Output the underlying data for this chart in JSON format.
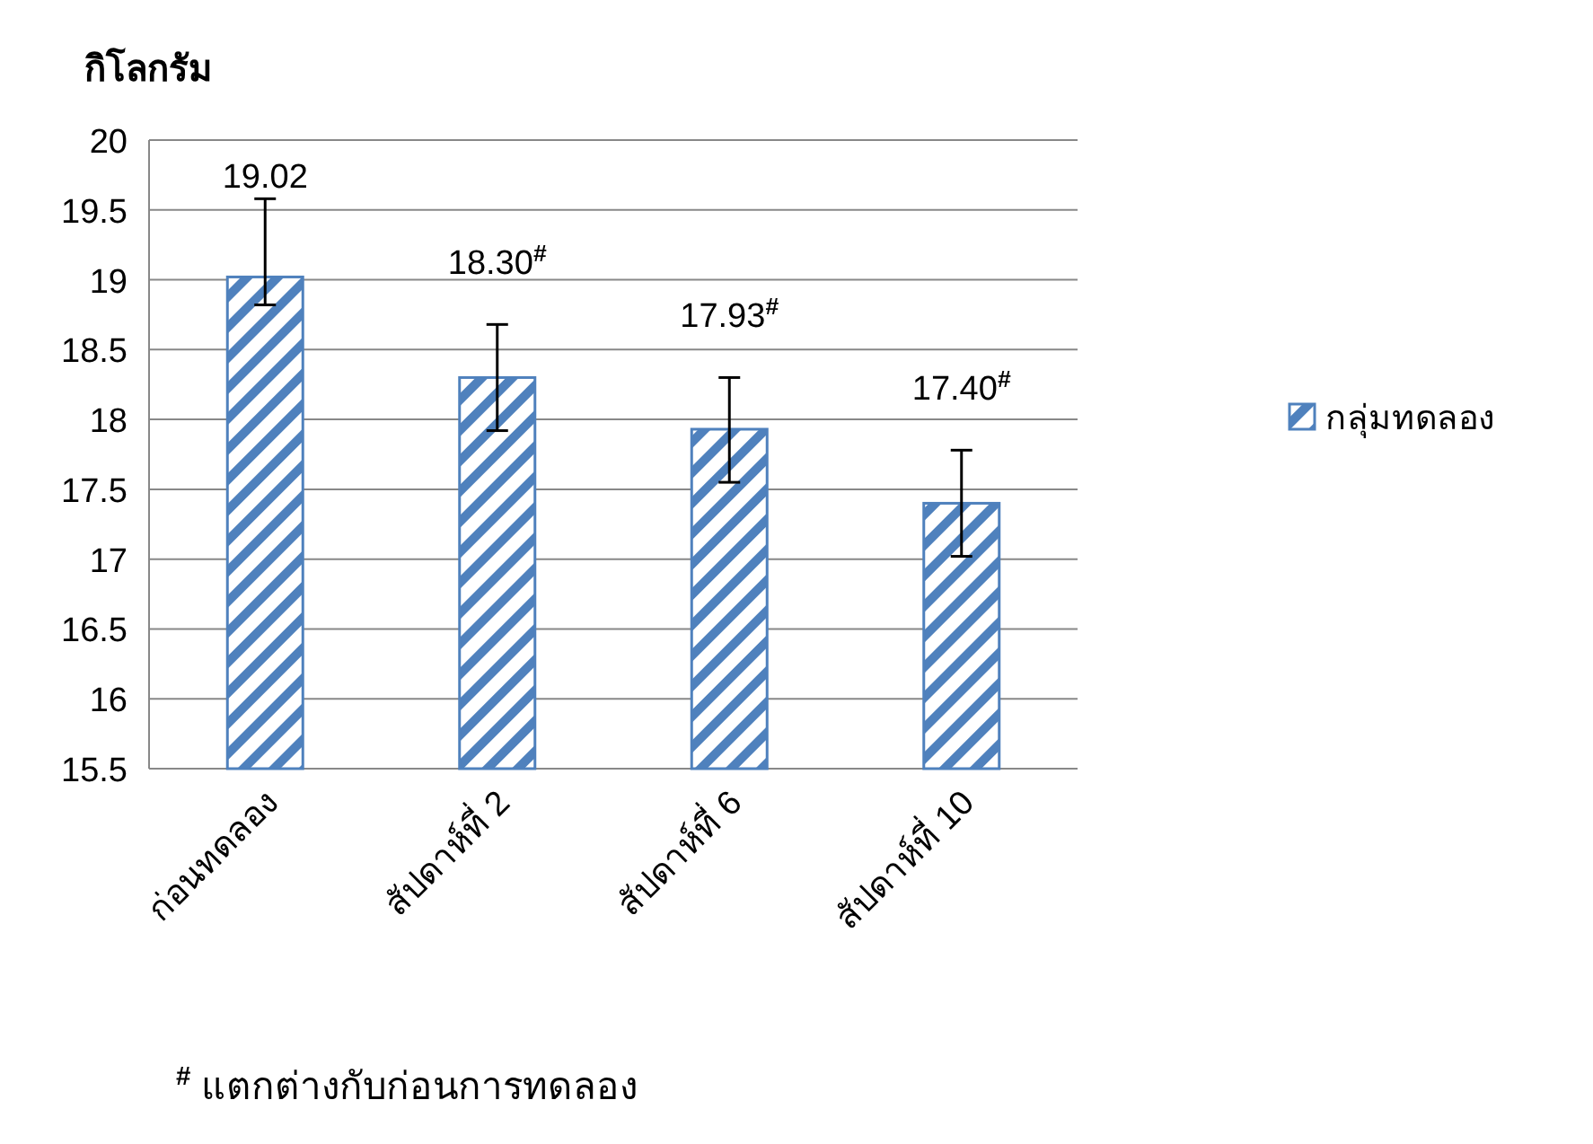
{
  "chart_data": {
    "type": "bar",
    "ylabel": "กิโลกรัม",
    "categories": [
      "ก่อนทดลอง",
      "สัปดาห์ที่ 2",
      "สัปดาห์ที่ 6",
      "สัปดาห์ที่ 10"
    ],
    "series": [
      {
        "name": "กลุ่มทดลอง",
        "color": "#4f81bd",
        "values": [
          19.02,
          18.3,
          17.93,
          17.4
        ],
        "errors": [
          [
            18.82,
            19.58
          ],
          [
            17.92,
            18.68
          ],
          [
            17.55,
            18.3
          ],
          [
            17.02,
            17.78
          ]
        ],
        "value_labels": [
          "19.02",
          "18.30$^{#}$",
          "17.93$^{#}$",
          "17.40$^{#}$"
        ]
      }
    ],
    "ylim": [
      15.5,
      20
    ],
    "yticks": [
      15.5,
      16,
      16.5,
      17,
      17.5,
      18,
      18.5,
      19,
      19.5,
      20
    ],
    "grid": "y",
    "legend": "right",
    "annotations": [
      "$^{#}$ แตกต่างกับก่อนการทดลอง"
    ]
  }
}
